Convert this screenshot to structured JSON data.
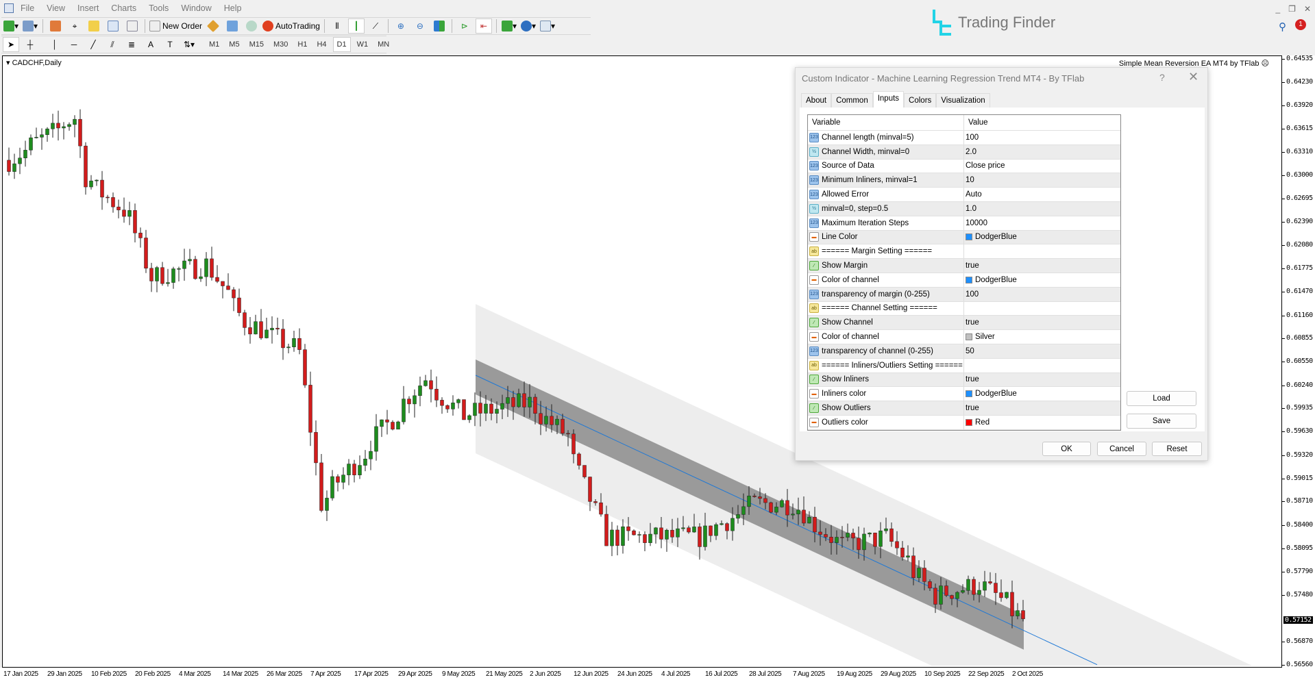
{
  "menu": [
    "File",
    "View",
    "Insert",
    "Charts",
    "Tools",
    "Window",
    "Help"
  ],
  "toolbar": {
    "new_order": "New Order",
    "auto_trading": "AutoTrading"
  },
  "timeframes": [
    "M1",
    "M5",
    "M15",
    "M30",
    "H1",
    "H4",
    "D1",
    "W1",
    "MN"
  ],
  "active_timeframe": "D1",
  "brand": {
    "name": "Trading Finder",
    "color": "#22d3e6"
  },
  "notifications": {
    "count": "1"
  },
  "chart": {
    "symbol_label": "CADCHF,Daily",
    "ea_label": "Simple Mean Reversion EA MT4 by TFlab",
    "price_labels": [
      "0.64535",
      "0.64230",
      "0.63920",
      "0.63615",
      "0.63310",
      "0.63000",
      "0.62695",
      "0.62390",
      "0.62080",
      "0.61775",
      "0.61470",
      "0.61160",
      "0.60855",
      "0.60550",
      "0.60240",
      "0.59935",
      "0.59630",
      "0.59320",
      "0.59015",
      "0.58710",
      "0.58400",
      "0.58095",
      "0.57790",
      "0.57480",
      "0.56870",
      "0.56560"
    ],
    "current_price": "0.57152",
    "date_labels": [
      "17 Jan 2025",
      "29 Jan 2025",
      "10 Feb 2025",
      "20 Feb 2025",
      "4 Mar 2025",
      "14 Mar 2025",
      "26 Mar 2025",
      "7 Apr 2025",
      "17 Apr 2025",
      "29 Apr 2025",
      "9 May 2025",
      "21 May 2025",
      "2 Jun 2025",
      "12 Jun 2025",
      "24 Jun 2025",
      "4 Jul 2025",
      "16 Jul 2025",
      "28 Jul 2025",
      "7 Aug 2025",
      "19 Aug 2025",
      "29 Aug 2025",
      "10 Sep 2025",
      "22 Sep 2025",
      "2 Oct 2025"
    ],
    "colors": {
      "bull": "#1e8c1e",
      "bear": "#d21c1c",
      "inliers_band": "#1e90ff",
      "channel": "#c0c0c0"
    }
  },
  "dialog": {
    "title": "Custom Indicator - Machine Learning Regression Trend MT4 - By TFlab",
    "help": "?",
    "tabs": [
      "About",
      "Common",
      "Inputs",
      "Colors",
      "Visualization"
    ],
    "active_tab": "Inputs",
    "columns": [
      "Variable",
      "Value"
    ],
    "rows": [
      {
        "type": "int",
        "var": "Channel length (minval=5)",
        "val": "100"
      },
      {
        "type": "dbl",
        "var": "Channel Width, minval=0",
        "val": "2.0"
      },
      {
        "type": "int",
        "var": "Source of Data",
        "val": "Close price"
      },
      {
        "type": "int",
        "var": "Minimum Inliners, minval=1",
        "val": "10"
      },
      {
        "type": "int",
        "var": "Allowed Error",
        "val": "Auto"
      },
      {
        "type": "dbl",
        "var": "minval=0, step=0.5",
        "val": "1.0"
      },
      {
        "type": "int",
        "var": "Maximum Iteration Steps",
        "val": "10000"
      },
      {
        "type": "col",
        "var": "Line Color",
        "val": "DodgerBlue",
        "color": "#1e90ff"
      },
      {
        "type": "str",
        "var": "====== Margin Setting ======",
        "val": ""
      },
      {
        "type": "bool",
        "var": "Show Margin",
        "val": "true"
      },
      {
        "type": "col",
        "var": "Color of channel",
        "val": "DodgerBlue",
        "color": "#1e90ff"
      },
      {
        "type": "int",
        "var": "transparency of margin (0-255)",
        "val": "100"
      },
      {
        "type": "str",
        "var": "====== Channel Setting ======",
        "val": ""
      },
      {
        "type": "bool",
        "var": "Show Channel",
        "val": "true"
      },
      {
        "type": "col",
        "var": "Color of channel",
        "val": "Silver",
        "color": "#c0c0c0"
      },
      {
        "type": "int",
        "var": "transparency of channel (0-255)",
        "val": "50"
      },
      {
        "type": "str",
        "var": "====== Inliners/Outliers Setting ======",
        "val": ""
      },
      {
        "type": "bool",
        "var": "Show Inliners",
        "val": "true"
      },
      {
        "type": "col",
        "var": "Inliners color",
        "val": "DodgerBlue",
        "color": "#1e90ff"
      },
      {
        "type": "bool",
        "var": "Show Outliers",
        "val": "true"
      },
      {
        "type": "col",
        "var": "Outliers color",
        "val": "Red",
        "color": "#ff0000"
      }
    ],
    "buttons": {
      "load": "Load",
      "save": "Save",
      "ok": "OK",
      "cancel": "Cancel",
      "reset": "Reset"
    }
  }
}
